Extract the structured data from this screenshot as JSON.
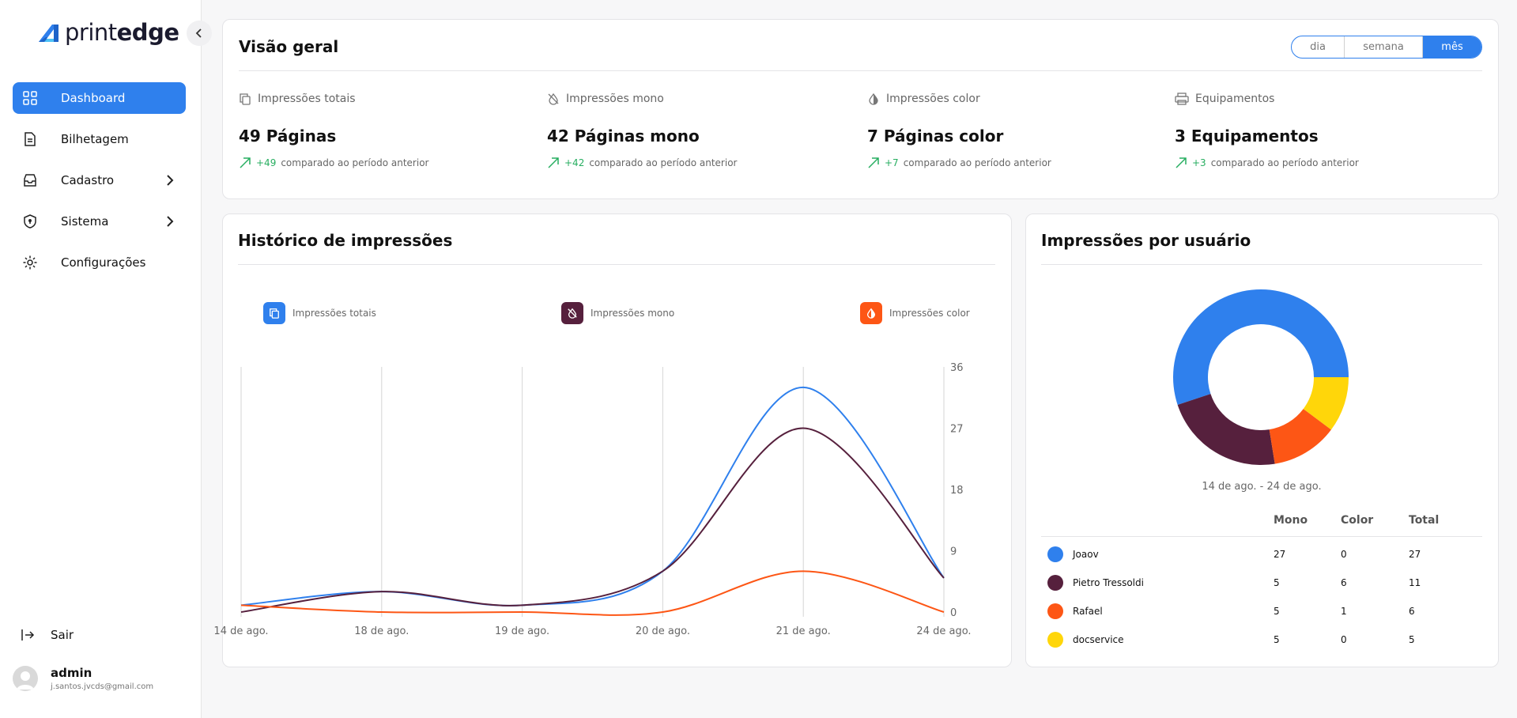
{
  "brand": {
    "prefix": "print",
    "suffix": "edge",
    "accent": "#2f80ed"
  },
  "sidebar": {
    "items": [
      {
        "label": "Dashboard",
        "icon": "grid-icon",
        "active": true
      },
      {
        "label": "Bilhetagem",
        "icon": "document-icon"
      },
      {
        "label": "Cadastro",
        "icon": "inbox-icon",
        "expandable": true
      },
      {
        "label": "Sistema",
        "icon": "shield-icon",
        "expandable": true
      },
      {
        "label": "Configurações",
        "icon": "gear-icon"
      }
    ],
    "logout": "Sair",
    "user": {
      "name": "admin",
      "email": "j.santos.jvcds@gmail.com"
    }
  },
  "overview": {
    "title": "Visão geral",
    "periods": [
      "dia",
      "semana",
      "mês"
    ],
    "selected_period": "mês",
    "stats": [
      {
        "label": "Impressões totais",
        "value": "49 Páginas",
        "delta": "+49",
        "delta_text": "comparado ao período anterior"
      },
      {
        "label": "Impressões mono",
        "value": "42 Páginas mono",
        "delta": "+42",
        "delta_text": "comparado ao período anterior"
      },
      {
        "label": "Impressões color",
        "value": "7 Páginas color",
        "delta": "+7",
        "delta_text": "comparado ao período anterior"
      },
      {
        "label": "Equipamentos",
        "value": "3 Equipamentos",
        "delta": "+3",
        "delta_text": "comparado ao período anterior"
      }
    ]
  },
  "history": {
    "title": "Histórico de impressões",
    "legend": [
      "Impressões totais",
      "Impressões mono",
      "Impressões color"
    ]
  },
  "users": {
    "title": "Impressões por usuário",
    "range": "14 de ago. - 24 de ago.",
    "columns": [
      "Mono",
      "Color",
      "Total"
    ],
    "rows": [
      {
        "name": "Joaov",
        "mono": "27",
        "color": "0",
        "total": "27",
        "swatch": "#2f80ed"
      },
      {
        "name": "Pietro Tressoldi",
        "mono": "5",
        "color": "6",
        "total": "11",
        "swatch": "#56203d"
      },
      {
        "name": "Rafael",
        "mono": "5",
        "color": "1",
        "total": "6",
        "swatch": "#fd5615"
      },
      {
        "name": "docservice",
        "mono": "5",
        "color": "0",
        "total": "5",
        "swatch": "#ffd60a"
      }
    ]
  },
  "chart_data": [
    {
      "type": "line",
      "x": [
        "14 de ago.",
        "18 de ago.",
        "19 de ago.",
        "20 de ago.",
        "21 de ago.",
        "24 de ago."
      ],
      "series": [
        {
          "name": "Impressões totais",
          "values": [
            1,
            3,
            1,
            6,
            33,
            5
          ],
          "color": "#2f80ed"
        },
        {
          "name": "Impressões mono",
          "values": [
            0,
            3,
            1,
            6,
            27,
            5
          ],
          "color": "#56203d"
        },
        {
          "name": "Impressões color",
          "values": [
            1,
            0,
            0,
            0,
            6,
            0
          ],
          "color": "#fd5615"
        }
      ],
      "y_ticks": [
        0,
        9,
        18,
        27,
        36
      ],
      "ylim": [
        0,
        36
      ],
      "y_axis_side": "right",
      "grid": "vertical"
    },
    {
      "type": "pie",
      "donut": true,
      "labels": [
        "Joaov",
        "Pietro Tressoldi",
        "Rafael",
        "docservice"
      ],
      "values": [
        27,
        11,
        6,
        5
      ],
      "colors": [
        "#2f80ed",
        "#56203d",
        "#fd5615",
        "#ffd60a"
      ]
    }
  ]
}
